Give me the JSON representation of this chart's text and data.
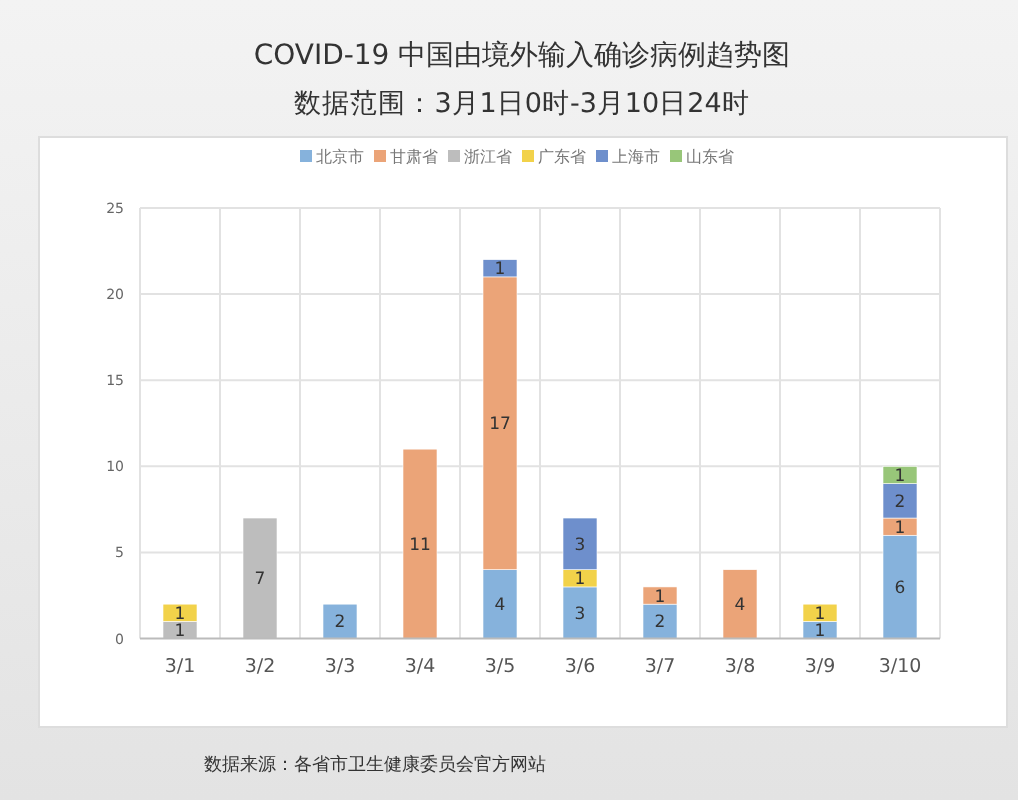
{
  "chart_data": {
    "type": "bar",
    "title": "COVID-19 中国由境外输入确诊病例趋势图",
    "subtitle": "数据范围：3月1日0时-3月10日24时",
    "categories": [
      "3/1",
      "3/2",
      "3/3",
      "3/4",
      "3/5",
      "3/6",
      "3/7",
      "3/8",
      "3/9",
      "3/10"
    ],
    "series": [
      {
        "name": "北京市",
        "color": "#86b2dc",
        "values": [
          null,
          null,
          2,
          null,
          4,
          3,
          2,
          null,
          1,
          6
        ]
      },
      {
        "name": "甘肃省",
        "color": "#eba478",
        "values": [
          null,
          null,
          null,
          11,
          17,
          null,
          1,
          4,
          null,
          1
        ]
      },
      {
        "name": "浙江省",
        "color": "#bdbdbd",
        "values": [
          1,
          7,
          null,
          null,
          null,
          null,
          null,
          null,
          null,
          null
        ]
      },
      {
        "name": "广东省",
        "color": "#f2d24a",
        "values": [
          1,
          null,
          null,
          null,
          null,
          1,
          null,
          null,
          1,
          null
        ]
      },
      {
        "name": "上海市",
        "color": "#6e8fcc",
        "values": [
          null,
          null,
          null,
          null,
          1,
          3,
          null,
          null,
          null,
          2
        ]
      },
      {
        "name": "山东省",
        "color": "#98c679",
        "values": [
          null,
          null,
          null,
          null,
          null,
          null,
          null,
          null,
          null,
          1
        ]
      }
    ],
    "stacked": true,
    "ylim": [
      0,
      25
    ],
    "yticks": [
      0,
      5,
      10,
      15,
      20,
      25
    ],
    "grid": true,
    "legend": "top",
    "data_labels": true,
    "annotations": [
      "数据来源：各省市卫生健康委员会官方网站"
    ]
  }
}
